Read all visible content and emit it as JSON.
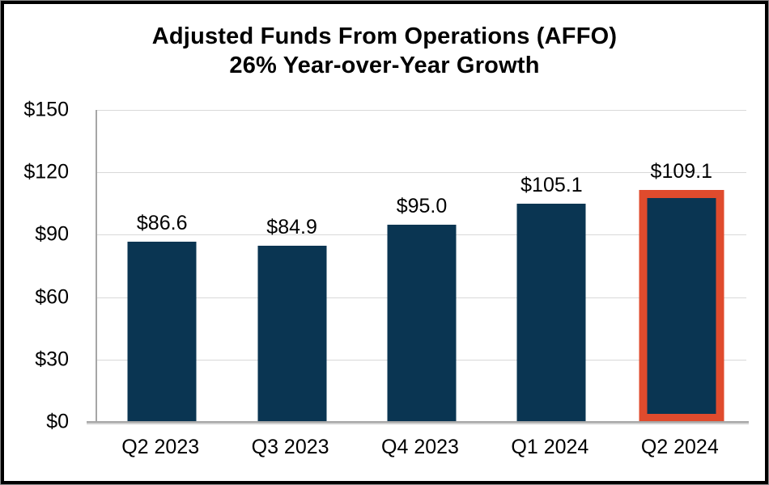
{
  "title": {
    "line1": "Adjusted Funds From Operations (AFFO)",
    "line2": "26% Year-over-Year Growth"
  },
  "chart_data": {
    "type": "bar",
    "title": "Adjusted Funds From Operations (AFFO) 26% Year-over-Year Growth",
    "categories": [
      "Q2 2023",
      "Q3 2023",
      "Q4 2023",
      "Q1 2024",
      "Q2 2024"
    ],
    "values": [
      86.6,
      84.9,
      95.0,
      105.1,
      109.1
    ],
    "value_labels": [
      "$86.6",
      "$84.9",
      "$95.0",
      "$105.1",
      "$109.1"
    ],
    "xlabel": "",
    "ylabel": "",
    "ylim": [
      0,
      150
    ],
    "yticks": [
      0,
      30,
      60,
      90,
      120,
      150
    ],
    "ytick_labels": [
      "$0",
      "$30",
      "$60",
      "$90",
      "$120",
      "$150"
    ],
    "grid": true,
    "legend": "none",
    "highlighted_category": "Q2 2024",
    "colors": {
      "bar": "#0a3552",
      "highlight_outline": "#e04b2d",
      "gridline": "#d9d9d9",
      "axis_line": "#a6a6a6",
      "text": "#000000",
      "frame_border": "#000000"
    }
  }
}
